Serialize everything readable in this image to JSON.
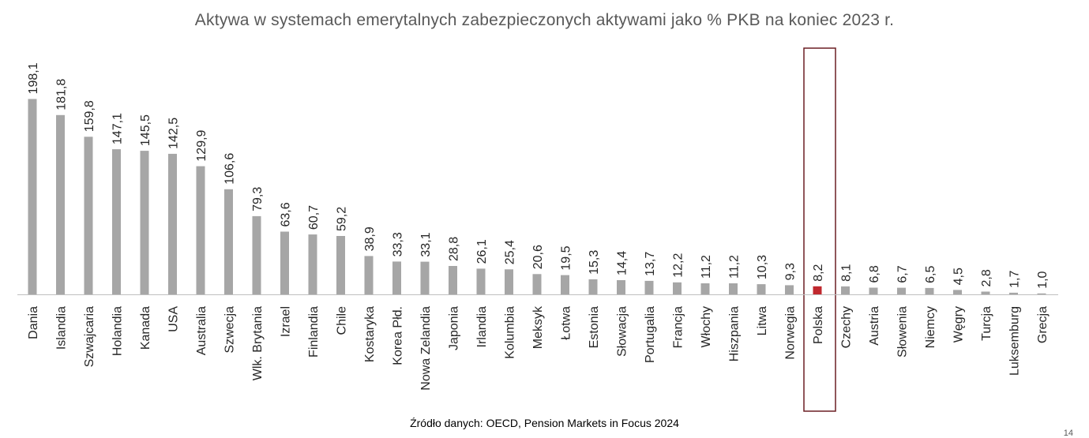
{
  "page": {
    "source": "Źródło danych: OECD, Pension Markets in Focus 2024",
    "page_number": "14"
  },
  "colors": {
    "bar": "#A6A6A6",
    "highlight_bar": "#C0282E",
    "highlight_frame": "#6B1F23",
    "axis": "#BFBFBF"
  },
  "chart_data": {
    "type": "bar",
    "title": "Aktywa w systemach emerytalnych zabezpieczonych aktywami jako % PKB na koniec 2023 r.",
    "xlabel": "",
    "ylabel": "",
    "ylim": [
      0,
      200
    ],
    "grid": false,
    "legend": "none",
    "highlight": "Polska",
    "categories": [
      "Dania",
      "Islandia",
      "Szwajcaria",
      "Holandia",
      "Kanada",
      "USA",
      "Australia",
      "Szwecja",
      "Wlk. Brytania",
      "Izrael",
      "Finlandia",
      "Chile",
      "Kostaryka",
      "Korea Płd.",
      "Nowa Zelandia",
      "Japonia",
      "Irlandia",
      "Kolumbia",
      "Meksyk",
      "Łotwa",
      "Estonia",
      "Słowacja",
      "Portugalia",
      "Francja",
      "Włochy",
      "Hiszpania",
      "Litwa",
      "Norwegia",
      "Polska",
      "Czechy",
      "Austria",
      "Słowenia",
      "Niemcy",
      "Węgry",
      "Turcja",
      "Luksemburg",
      "Grecja"
    ],
    "values": [
      198.1,
      181.8,
      159.8,
      147.1,
      145.5,
      142.5,
      129.9,
      106.6,
      79.3,
      63.6,
      60.7,
      59.2,
      38.9,
      33.3,
      33.1,
      28.8,
      26.1,
      25.4,
      20.6,
      19.5,
      15.3,
      14.4,
      13.7,
      12.2,
      11.2,
      11.2,
      10.3,
      9.3,
      8.2,
      8.1,
      6.8,
      6.7,
      6.5,
      4.5,
      2.8,
      1.7,
      1.0
    ],
    "value_labels": [
      "198,1",
      "181,8",
      "159,8",
      "147,1",
      "145,5",
      "142,5",
      "129,9",
      "106,6",
      "79,3",
      "63,6",
      "60,7",
      "59,2",
      "38,9",
      "33,3",
      "33,1",
      "28,8",
      "26,1",
      "25,4",
      "20,6",
      "19,5",
      "15,3",
      "14,4",
      "13,7",
      "12,2",
      "11,2",
      "11,2",
      "10,3",
      "9,3",
      "8,2",
      "8,1",
      "6,8",
      "6,7",
      "6,5",
      "4,5",
      "2,8",
      "1,7",
      "1,0"
    ]
  }
}
